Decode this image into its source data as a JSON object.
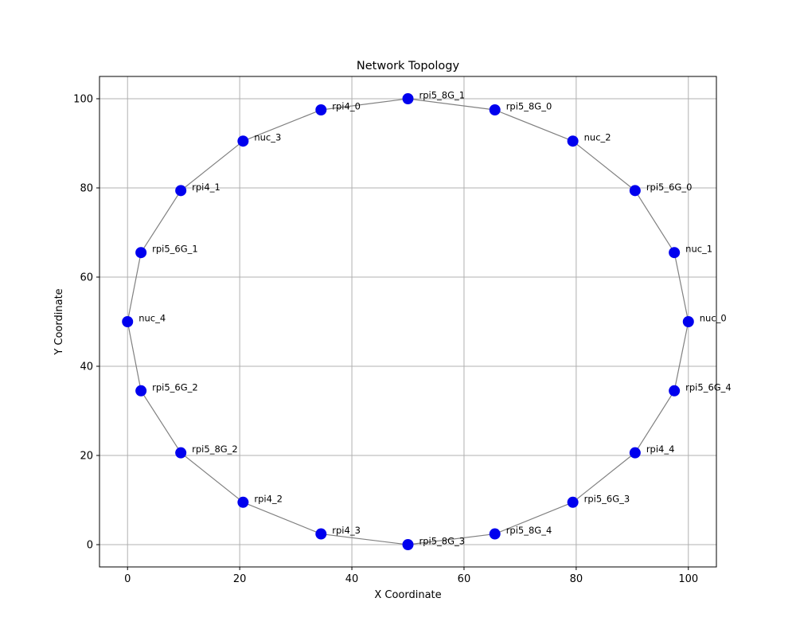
{
  "chart_data": {
    "type": "scatter",
    "title": "Network Topology",
    "xlabel": "X Coordinate",
    "ylabel": "Y Coordinate",
    "xlim": [
      -5,
      105
    ],
    "ylim": [
      -5,
      105
    ],
    "xticks": [
      0,
      20,
      40,
      60,
      80,
      100
    ],
    "yticks": [
      0,
      20,
      40,
      60,
      80,
      100
    ],
    "grid": true,
    "marker_color": "#0000ee",
    "edge_color": "#808080",
    "nodes": [
      {
        "label": "nuc_0",
        "x": 100.0,
        "y": 50.0
      },
      {
        "label": "nuc_1",
        "x": 97.5,
        "y": 65.5
      },
      {
        "label": "rpi5_6G_0",
        "x": 90.5,
        "y": 79.4
      },
      {
        "label": "nuc_2",
        "x": 79.4,
        "y": 90.5
      },
      {
        "label": "rpi5_8G_0",
        "x": 65.5,
        "y": 97.5
      },
      {
        "label": "rpi5_8G_1",
        "x": 50.0,
        "y": 100.0
      },
      {
        "label": "rpi4_0",
        "x": 34.5,
        "y": 97.5
      },
      {
        "label": "nuc_3",
        "x": 20.6,
        "y": 90.5
      },
      {
        "label": "rpi4_1",
        "x": 9.5,
        "y": 79.4
      },
      {
        "label": "rpi5_6G_1",
        "x": 2.4,
        "y": 65.5
      },
      {
        "label": "nuc_4",
        "x": 0.0,
        "y": 50.0
      },
      {
        "label": "rpi5_6G_2",
        "x": 2.4,
        "y": 34.5
      },
      {
        "label": "rpi5_8G_2",
        "x": 9.5,
        "y": 20.6
      },
      {
        "label": "rpi4_2",
        "x": 20.6,
        "y": 9.5
      },
      {
        "label": "rpi4_3",
        "x": 34.5,
        "y": 2.4
      },
      {
        "label": "rpi5_8G_3",
        "x": 50.0,
        "y": 0.0
      },
      {
        "label": "rpi5_8G_4",
        "x": 65.5,
        "y": 2.4
      },
      {
        "label": "rpi5_6G_3",
        "x": 79.4,
        "y": 9.5
      },
      {
        "label": "rpi4_4",
        "x": 90.5,
        "y": 20.6
      },
      {
        "label": "rpi5_6G_4",
        "x": 97.5,
        "y": 34.5
      }
    ]
  }
}
